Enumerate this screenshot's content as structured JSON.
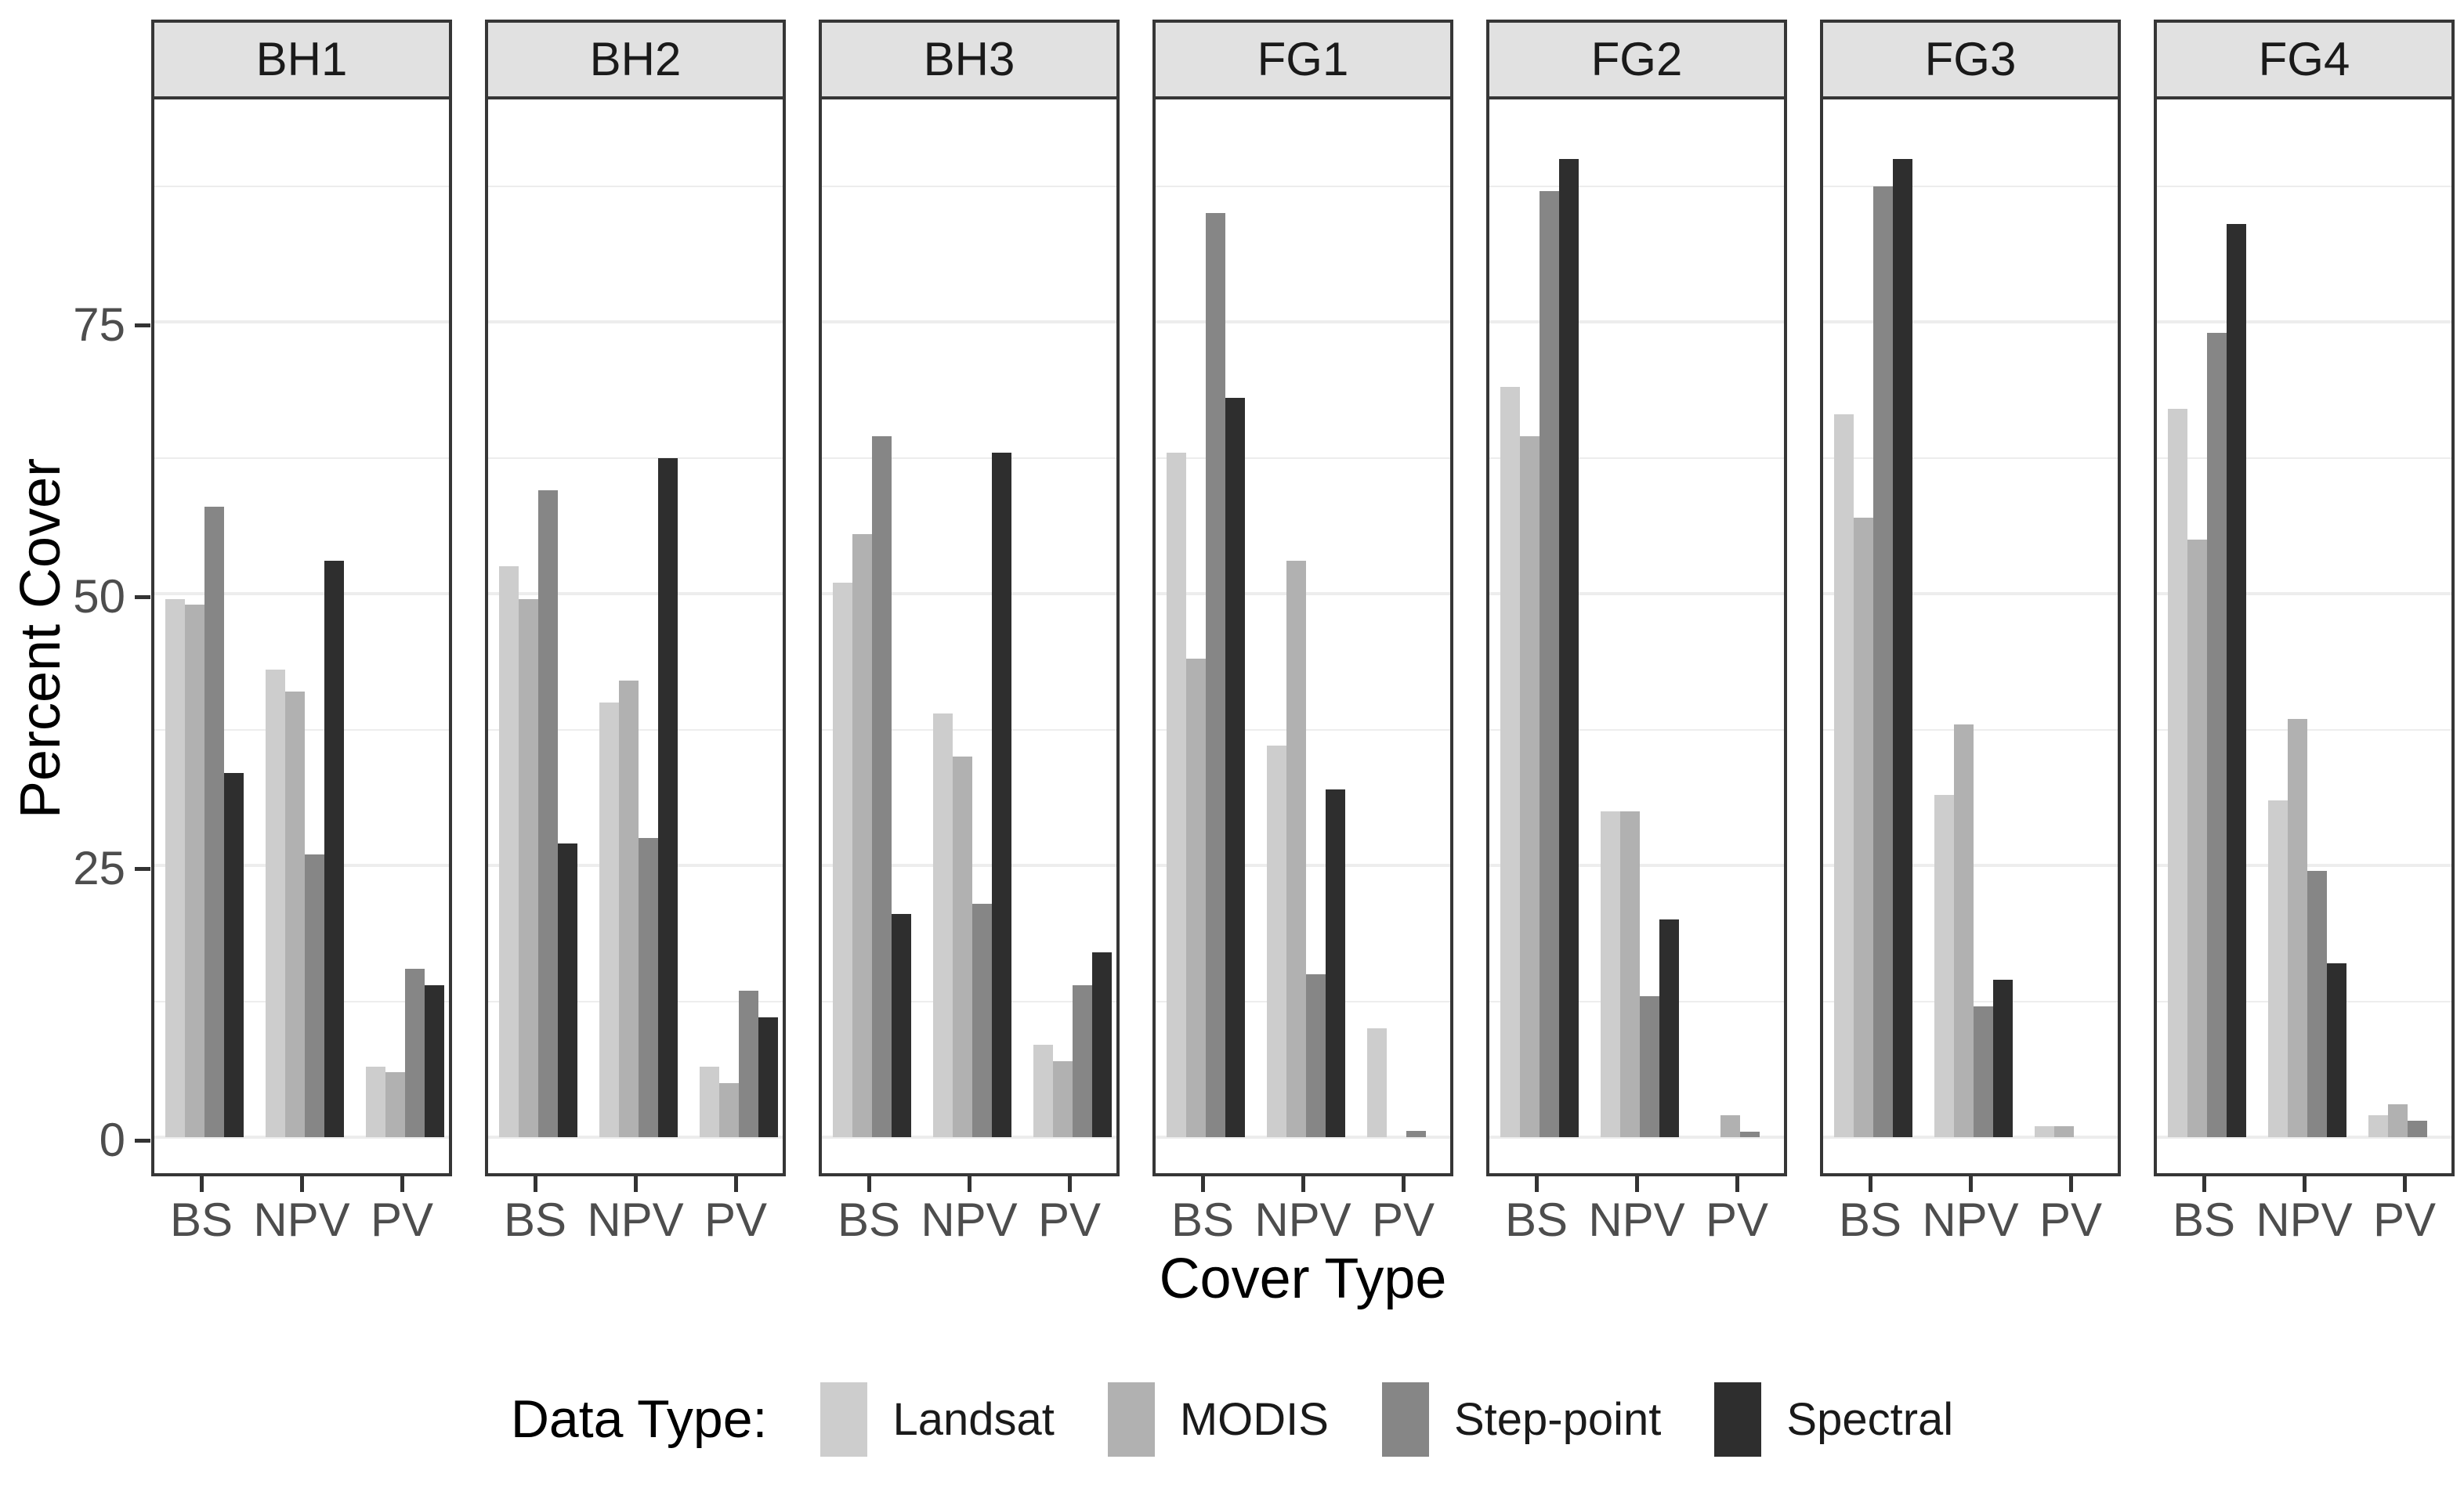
{
  "figure": {
    "y_axis_title": "Percent Cover",
    "x_axis_title": "Cover Type",
    "legend_title": "Data Type:"
  },
  "chart_data": {
    "type": "bar",
    "title": "",
    "xlabel": "Cover Type",
    "ylabel": "Percent Cover",
    "facet_labels": [
      "BH1",
      "BH2",
      "BH3",
      "FG1",
      "FG2",
      "FG3",
      "FG4"
    ],
    "categories": [
      "BS",
      "NPV",
      "PV"
    ],
    "series_names": [
      "Landsat",
      "MODIS",
      "Step-point",
      "Spectral"
    ],
    "y_ticks": [
      0,
      25,
      50,
      75
    ],
    "ylim": [
      0,
      95
    ],
    "grid": true,
    "minor_grid_interval": 12.5,
    "legend_position": "bottom",
    "legend_title": "Data Type:",
    "facets": [
      {
        "label": "BH1",
        "series": [
          {
            "name": "Landsat",
            "values": [
              49.5,
              43,
              6.5
            ]
          },
          {
            "name": "MODIS",
            "values": [
              49,
              41,
              6
            ]
          },
          {
            "name": "Step-point",
            "values": [
              58,
              26,
              15.5
            ]
          },
          {
            "name": "Spectral",
            "values": [
              33.5,
              53,
              14
            ]
          }
        ]
      },
      {
        "label": "BH2",
        "series": [
          {
            "name": "Landsat",
            "values": [
              52.5,
              40,
              6.5
            ]
          },
          {
            "name": "MODIS",
            "values": [
              49.5,
              42,
              5
            ]
          },
          {
            "name": "Step-point",
            "values": [
              59.5,
              27.5,
              13.5
            ]
          },
          {
            "name": "Spectral",
            "values": [
              27,
              62.5,
              11
            ]
          }
        ]
      },
      {
        "label": "BH3",
        "series": [
          {
            "name": "Landsat",
            "values": [
              51,
              39,
              8.5
            ]
          },
          {
            "name": "MODIS",
            "values": [
              55.5,
              35,
              7
            ]
          },
          {
            "name": "Step-point",
            "values": [
              64.5,
              21.5,
              14
            ]
          },
          {
            "name": "Spectral",
            "values": [
              20.5,
              63,
              17
            ]
          }
        ]
      },
      {
        "label": "FG1",
        "series": [
          {
            "name": "Landsat",
            "values": [
              63,
              36,
              10
            ]
          },
          {
            "name": "MODIS",
            "values": [
              44,
              53,
              0
            ]
          },
          {
            "name": "Step-point",
            "values": [
              85,
              15,
              0.6
            ]
          },
          {
            "name": "Spectral",
            "values": [
              68,
              32,
              0
            ]
          }
        ]
      },
      {
        "label": "FG2",
        "series": [
          {
            "name": "Landsat",
            "values": [
              69,
              30,
              0
            ]
          },
          {
            "name": "MODIS",
            "values": [
              64.5,
              30,
              2
            ]
          },
          {
            "name": "Step-point",
            "values": [
              87,
              13,
              0.5
            ]
          },
          {
            "name": "Spectral",
            "values": [
              90,
              20,
              0
            ]
          }
        ]
      },
      {
        "label": "FG3",
        "series": [
          {
            "name": "Landsat",
            "values": [
              66.5,
              31.5,
              1
            ]
          },
          {
            "name": "MODIS",
            "values": [
              57,
              38,
              1
            ]
          },
          {
            "name": "Step-point",
            "values": [
              87.5,
              12,
              0
            ]
          },
          {
            "name": "Spectral",
            "values": [
              90,
              14.5,
              0
            ]
          }
        ]
      },
      {
        "label": "FG4",
        "series": [
          {
            "name": "Landsat",
            "values": [
              67,
              31,
              2
            ]
          },
          {
            "name": "MODIS",
            "values": [
              55,
              38.5,
              3
            ]
          },
          {
            "name": "Step-point",
            "values": [
              74,
              24.5,
              1.5
            ]
          },
          {
            "name": "Spectral",
            "values": [
              84,
              16,
              0
            ]
          }
        ]
      }
    ],
    "colors": {
      "Landsat": "#cdcdcd",
      "MODIS": "#b1b1b1",
      "Step-point": "#868686",
      "Spectral": "#2e2e2e"
    },
    "theme": {
      "strip_bg": "#e1e1e1",
      "border": "#363636",
      "grid": "#ededed",
      "tick_text": "#4d4d4d",
      "title_text": "#000000",
      "panel_bg": "#ffffff"
    }
  }
}
